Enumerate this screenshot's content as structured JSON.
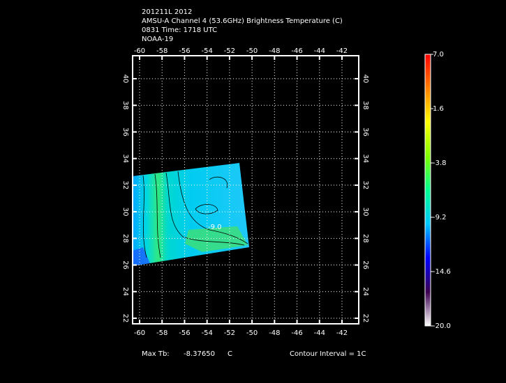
{
  "chart_data": {
    "type": "map",
    "title_lines": [
      "201211L 2012",
      "AMSU-A Channel 4 (53.6GHz) Brightness Temperature (C)",
      "0831 Time: 1718 UTC",
      "NOAA-19"
    ],
    "xlim": [
      -60.62,
      -40.51
    ],
    "ylim": [
      21.58,
      41.73
    ],
    "xticks": [
      -60,
      -58,
      -56,
      -54,
      -52,
      -50,
      -48,
      -46,
      -44,
      -42
    ],
    "yticks": [
      22,
      24,
      26,
      28,
      30,
      32,
      34,
      36,
      38,
      40
    ],
    "grid": true,
    "contour_label": "-9.0",
    "colorbar": {
      "lim": [
        -20,
        7
      ],
      "ticks": [
        {
          "value": 7,
          "label": "7.0"
        },
        1.6,
        -3.8,
        -9.2,
        -14.6,
        {
          "value": -20,
          "label": "-20.0"
        }
      ],
      "colors": [
        "#ffffff",
        "#3c0050",
        "#0000ff",
        "#00c8ff",
        "#00ff90",
        "#80ff00",
        "#ffff00",
        "#ff8000",
        "#ff0000"
      ]
    },
    "footer": {
      "max_label": "Max Tb:",
      "max_value": "-8.37650",
      "max_unit": "C",
      "contour_interval": "Contour Interval = 1C"
    }
  }
}
